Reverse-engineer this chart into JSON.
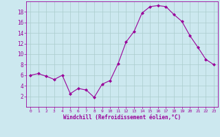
{
  "x": [
    0,
    1,
    2,
    3,
    4,
    5,
    6,
    7,
    8,
    9,
    10,
    11,
    12,
    13,
    14,
    15,
    16,
    17,
    18,
    19,
    20,
    21,
    22,
    23
  ],
  "y": [
    6,
    6.3,
    5.8,
    5.2,
    6.0,
    2.5,
    3.5,
    3.2,
    1.8,
    4.3,
    5.0,
    8.2,
    12.3,
    14.3,
    17.8,
    19.0,
    19.2,
    19.0,
    17.5,
    16.2,
    13.5,
    11.3,
    9.0,
    8.0
  ],
  "line_color": "#990099",
  "marker": "D",
  "marker_size": 2,
  "bg_color": "#cce8ef",
  "grid_color": "#aacccc",
  "xlabel": "Windchill (Refroidissement éolien,°C)",
  "xlabel_color": "#990099",
  "tick_color": "#990099",
  "ylim": [
    0,
    20
  ],
  "xlim": [
    -0.5,
    23.5
  ],
  "yticks": [
    2,
    4,
    6,
    8,
    10,
    12,
    14,
    16,
    18
  ],
  "xticks": [
    0,
    1,
    2,
    3,
    4,
    5,
    6,
    7,
    8,
    9,
    10,
    11,
    12,
    13,
    14,
    15,
    16,
    17,
    18,
    19,
    20,
    21,
    22,
    23
  ],
  "figsize": [
    3.2,
    2.0
  ],
  "dpi": 100
}
